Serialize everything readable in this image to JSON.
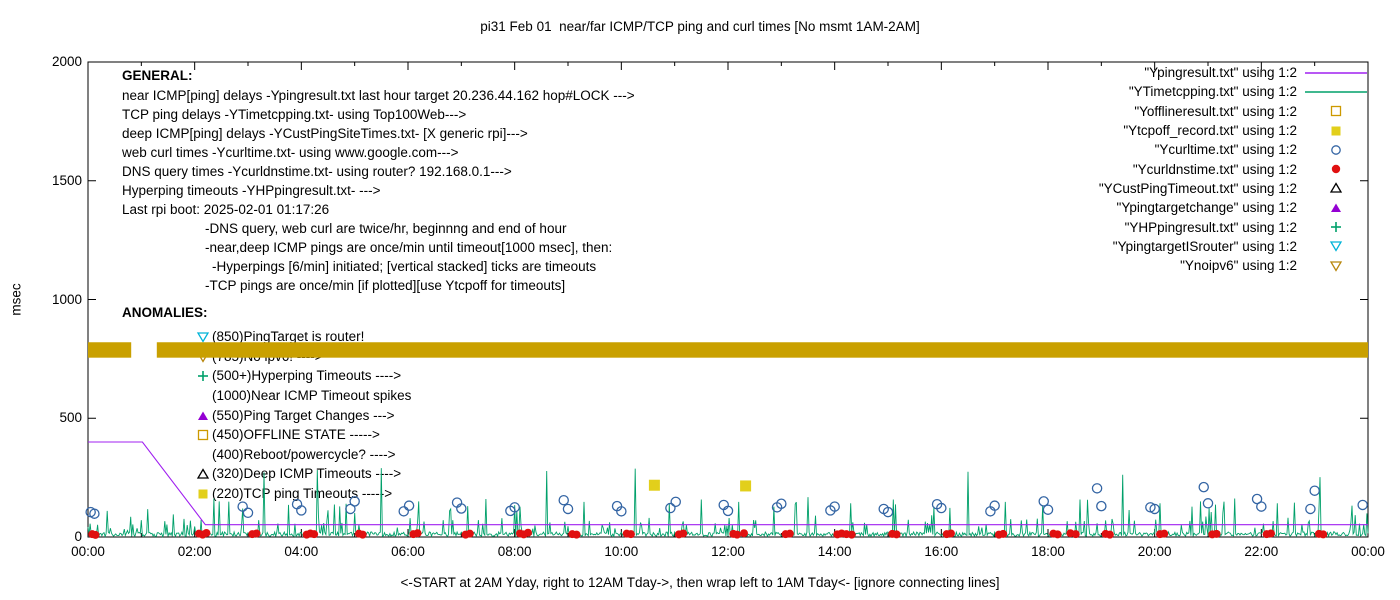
{
  "title": "pi31 Feb 01  near/far ICMP/TCP ping and curl times [No msmt 1AM-2AM]",
  "y_axis_label": "msec",
  "x_axis_label": "<-START at 2AM Yday, right to 12AM Tday->, then wrap left to 1AM Tday<- [ignore connecting lines]",
  "general": {
    "heading": "GENERAL:",
    "lines": [
      {
        "indent": 0,
        "text": "near ICMP[ping] delays -Ypingresult.txt last hour target 20.236.44.162 hop#LOCK --->"
      },
      {
        "indent": 0,
        "text": "TCP ping delays -YTimetcpping.txt- using Top100Web--->"
      },
      {
        "indent": 0,
        "text": "deep ICMP[ping] delays -YCustPingSiteTimes.txt- [X generic rpi]--->"
      },
      {
        "indent": 0,
        "text": "web curl times -Ycurltime.txt- using www.google.com--->"
      },
      {
        "indent": 0,
        "text": "DNS query times -Ycurldnstime.txt- using router? 192.168.0.1--->"
      },
      {
        "indent": 0,
        "text": "Hyperping timeouts -YHPpingresult.txt- --->"
      },
      {
        "indent": 0,
        "text": "Last rpi boot: 2025-02-01 01:17:26"
      },
      {
        "indent": 1,
        "text": "-DNS query, web curl are twice/hr, beginnng and end of hour"
      },
      {
        "indent": 1,
        "text": "-near,deep ICMP pings are once/min until timeout[1000 msec], then:"
      },
      {
        "indent": 2,
        "text": "-Hyperpings [6/min] initiated; [vertical stacked] ticks are timeouts"
      },
      {
        "indent": 1,
        "text": "-TCP pings are once/min [if plotted][use Ytcpoff for timeouts]"
      }
    ]
  },
  "anomalies": {
    "heading": "ANOMALIES:",
    "items": [
      {
        "marker": "tri-down-open-cyan",
        "text": "(850)PingTarget is router!"
      },
      {
        "marker": "tri-down-open-gold",
        "text": "(785)No ipv6! ---->"
      },
      {
        "marker": "plus-green",
        "text": "(500+)Hyperping Timeouts ---->"
      },
      {
        "marker": "none",
        "text": "(1000)Near ICMP Timeout spikes"
      },
      {
        "marker": "tri-up-filled-violet",
        "text": "(550)Ping Target Changes --->"
      },
      {
        "marker": "square-open-orange",
        "text": "(450)OFFLINE STATE ----->"
      },
      {
        "marker": "none",
        "text": "(400)Reboot/powercycle? ---->"
      },
      {
        "marker": "tri-up-open-black",
        "text": "(320)Deep ICMP Timeouts ---->"
      },
      {
        "marker": "square-filled-yellow",
        "text": "(220)TCP ping Timeouts ----->"
      }
    ]
  },
  "legend": [
    {
      "label": "\"Ypingresult.txt\" using 1:2",
      "marker": "line-purple"
    },
    {
      "label": "\"YTimetcpping.txt\" using 1:2",
      "marker": "line-green"
    },
    {
      "label": "\"Yofflineresult.txt\" using 1:2",
      "marker": "square-open-orange"
    },
    {
      "label": "\"Ytcpoff_record.txt\" using 1:2",
      "marker": "square-filled-yellow"
    },
    {
      "label": "\"Ycurltime.txt\" using 1:2",
      "marker": "circle-open-blue"
    },
    {
      "label": "\"Ycurldnstime.txt\" using 1:2",
      "marker": "circle-filled-red"
    },
    {
      "label": "\"YCustPingTimeout.txt\" using 1:2",
      "marker": "tri-up-open-black"
    },
    {
      "label": "\"Ypingtargetchange\" using 1:2",
      "marker": "tri-up-filled-violet"
    },
    {
      "label": "\"YHPpingresult.txt\" using 1:2",
      "marker": "plus-green"
    },
    {
      "label": "\"YpingtargetISrouter\" using 1:2",
      "marker": "tri-down-open-cyan"
    },
    {
      "label": "\"Ynoipv6\" using 1:2",
      "marker": "tri-down-open-gold"
    }
  ],
  "colors": {
    "purple_line": "#a020f0",
    "violet_fill": "#9400d3",
    "green": "#00a06a",
    "blue": "#3465a4",
    "red": "#e01010",
    "yellow_square": "#e2cf1b",
    "orange_open": "#cc9900",
    "gold_open": "#b8860b",
    "cyan": "#00b4d8",
    "band": "#c9a000"
  },
  "chart_data": {
    "type": "line",
    "x_unit": "hours",
    "x_range": [
      0,
      24
    ],
    "y_range": [
      0,
      2000
    ],
    "x_ticks": [
      "00:00",
      "02:00",
      "04:00",
      "06:00",
      "08:00",
      "10:00",
      "12:00",
      "14:00",
      "16:00",
      "18:00",
      "20:00",
      "22:00",
      "00:00"
    ],
    "y_ticks": [
      0,
      500,
      1000,
      1500,
      2000
    ],
    "series": {
      "near_icmp_line": {
        "name": "Ypingresult",
        "color_key": "purple_line",
        "points": [
          [
            0,
            400
          ],
          [
            1.02,
            400
          ],
          [
            2.2,
            52
          ],
          [
            24,
            52
          ]
        ]
      },
      "tcp_ping_line": {
        "name": "YTimetcpping / hyperping",
        "color_key": "green",
        "baseline": 12,
        "noise_amp": 26,
        "sample_step_hours": 0.02,
        "noise_seed": 20250201,
        "spikes": [
          [
            0.35,
            110
          ],
          [
            0.8,
            85
          ],
          [
            1.6,
            95
          ],
          [
            2.45,
            150
          ],
          [
            2.9,
            120
          ],
          [
            3.3,
            272
          ],
          [
            3.75,
            135
          ],
          [
            4.3,
            282
          ],
          [
            4.85,
            140
          ],
          [
            5.5,
            290
          ],
          [
            6.2,
            150
          ],
          [
            6.8,
            118
          ],
          [
            7.45,
            160
          ],
          [
            8.1,
            128
          ],
          [
            8.6,
            278
          ],
          [
            9.3,
            148
          ],
          [
            10.25,
            288
          ],
          [
            10.9,
            140
          ],
          [
            11.5,
            158
          ],
          [
            12.2,
            148
          ],
          [
            12.85,
            128
          ],
          [
            13.5,
            168
          ],
          [
            14.3,
            142
          ],
          [
            15.1,
            158
          ],
          [
            15.85,
            128
          ],
          [
            16.5,
            275
          ],
          [
            17.2,
            148
          ],
          [
            17.9,
            132
          ],
          [
            18.6,
            158
          ],
          [
            19.4,
            262
          ],
          [
            20.1,
            142
          ],
          [
            20.85,
            150
          ],
          [
            21.5,
            162
          ],
          [
            22.3,
            142
          ],
          [
            23.1,
            252
          ],
          [
            23.7,
            132
          ]
        ]
      },
      "web_curl": {
        "name": "Ycurltime",
        "color_key": "blue",
        "points": [
          [
            0.05,
            105
          ],
          [
            0.12,
            98
          ],
          [
            2.9,
            128
          ],
          [
            3.0,
            102
          ],
          [
            3.92,
            138
          ],
          [
            4.0,
            112
          ],
          [
            4.92,
            118
          ],
          [
            5.0,
            150
          ],
          [
            5.92,
            108
          ],
          [
            6.02,
            132
          ],
          [
            6.92,
            145
          ],
          [
            7.0,
            120
          ],
          [
            7.92,
            110
          ],
          [
            8.0,
            125
          ],
          [
            8.92,
            155
          ],
          [
            9.0,
            118
          ],
          [
            9.92,
            130
          ],
          [
            10.0,
            108
          ],
          [
            10.92,
            122
          ],
          [
            11.02,
            148
          ],
          [
            11.92,
            135
          ],
          [
            12.0,
            110
          ],
          [
            12.92,
            125
          ],
          [
            13.0,
            140
          ],
          [
            13.92,
            112
          ],
          [
            14.0,
            128
          ],
          [
            14.92,
            118
          ],
          [
            15.0,
            105
          ],
          [
            15.92,
            138
          ],
          [
            16.0,
            122
          ],
          [
            16.92,
            108
          ],
          [
            17.0,
            132
          ],
          [
            17.92,
            150
          ],
          [
            18.0,
            115
          ],
          [
            18.92,
            205
          ],
          [
            19.0,
            130
          ],
          [
            19.92,
            125
          ],
          [
            20.0,
            118
          ],
          [
            20.92,
            210
          ],
          [
            21.0,
            142
          ],
          [
            21.92,
            160
          ],
          [
            22.0,
            128
          ],
          [
            22.92,
            118
          ],
          [
            23.0,
            195
          ],
          [
            23.9,
            135
          ]
        ]
      },
      "dns_query": {
        "name": "Ycurldnstime",
        "color_key": "red",
        "points": [
          [
            0.08,
            12
          ],
          [
            0.14,
            9
          ],
          [
            2.08,
            14
          ],
          [
            2.15,
            10
          ],
          [
            2.22,
            17
          ],
          [
            3.08,
            12
          ],
          [
            3.16,
            15
          ],
          [
            4.1,
            10
          ],
          [
            4.17,
            15
          ],
          [
            4.24,
            12
          ],
          [
            5.08,
            14
          ],
          [
            5.15,
            10
          ],
          [
            6.1,
            12
          ],
          [
            6.18,
            16
          ],
          [
            7.08,
            10
          ],
          [
            7.16,
            14
          ],
          [
            8.1,
            15
          ],
          [
            8.17,
            11
          ],
          [
            8.25,
            18
          ],
          [
            9.08,
            12
          ],
          [
            9.16,
            10
          ],
          [
            10.1,
            14
          ],
          [
            10.18,
            12
          ],
          [
            11.08,
            11
          ],
          [
            11.16,
            15
          ],
          [
            12.1,
            13
          ],
          [
            12.17,
            10
          ],
          [
            12.3,
            16
          ],
          [
            13.08,
            12
          ],
          [
            13.16,
            14
          ],
          [
            14.05,
            11
          ],
          [
            14.13,
            15
          ],
          [
            14.22,
            12
          ],
          [
            14.32,
            10
          ],
          [
            15.08,
            13
          ],
          [
            15.16,
            11
          ],
          [
            16.1,
            12
          ],
          [
            16.18,
            15
          ],
          [
            17.08,
            10
          ],
          [
            17.16,
            13
          ],
          [
            18.1,
            14
          ],
          [
            18.18,
            11
          ],
          [
            18.42,
            16
          ],
          [
            18.52,
            12
          ],
          [
            19.08,
            13
          ],
          [
            19.16,
            10
          ],
          [
            20.1,
            12
          ],
          [
            20.18,
            14
          ],
          [
            21.08,
            11
          ],
          [
            21.16,
            13
          ],
          [
            22.1,
            12
          ],
          [
            22.18,
            15
          ],
          [
            23.08,
            13
          ],
          [
            23.16,
            11
          ]
        ]
      },
      "tcp_timeouts": {
        "name": "Ytcpoff_record",
        "color_key": "yellow_square",
        "points": [
          [
            10.62,
            218
          ],
          [
            12.33,
            215
          ]
        ]
      },
      "noipv6_band": {
        "name": "Ynoipv6",
        "color_key": "band",
        "y_band": [
          755,
          820
        ],
        "segments": [
          [
            0,
            0.81
          ],
          [
            1.29,
            24
          ]
        ]
      }
    }
  }
}
